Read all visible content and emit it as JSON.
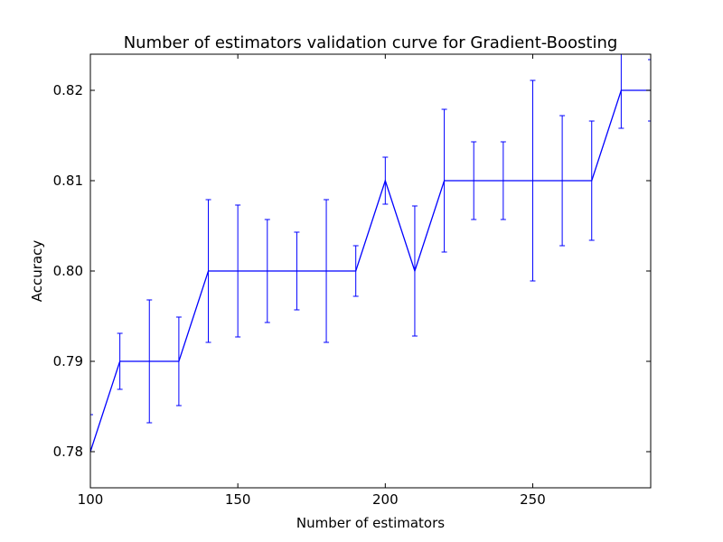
{
  "chart_data": {
    "type": "line",
    "title": "Number of estimators validation curve for Gradient-Boosting",
    "xlabel": "Number of estimators",
    "ylabel": "Accuracy",
    "xlim": [
      100,
      290
    ],
    "ylim": [
      0.776,
      0.824
    ],
    "xticks": [
      100,
      150,
      200,
      250
    ],
    "xtick_labels": [
      "100",
      "150",
      "200",
      "250"
    ],
    "yticks": [
      0.78,
      0.79,
      0.8,
      0.81,
      0.82
    ],
    "ytick_labels": [
      "0.78",
      "0.79",
      "0.80",
      "0.81",
      "0.82"
    ],
    "grid": false,
    "legend": "none",
    "series": [
      {
        "color": "#0000ff",
        "x": [
          100,
          110,
          120,
          130,
          140,
          150,
          160,
          170,
          180,
          190,
          200,
          210,
          220,
          230,
          240,
          250,
          260,
          270,
          280,
          290
        ],
        "y": [
          0.78,
          0.79,
          0.79,
          0.79,
          0.8,
          0.8,
          0.8,
          0.8,
          0.8,
          0.8,
          0.81,
          0.8,
          0.81,
          0.81,
          0.81,
          0.81,
          0.81,
          0.81,
          0.82,
          0.82
        ],
        "yerr": [
          0.0041,
          0.0031,
          0.0068,
          0.0049,
          0.0079,
          0.0073,
          0.0057,
          0.0043,
          0.0079,
          0.0028,
          0.0026,
          0.0072,
          0.0079,
          0.0043,
          0.0043,
          0.0111,
          0.0072,
          0.0066,
          0.0042,
          0.0034
        ]
      }
    ]
  }
}
